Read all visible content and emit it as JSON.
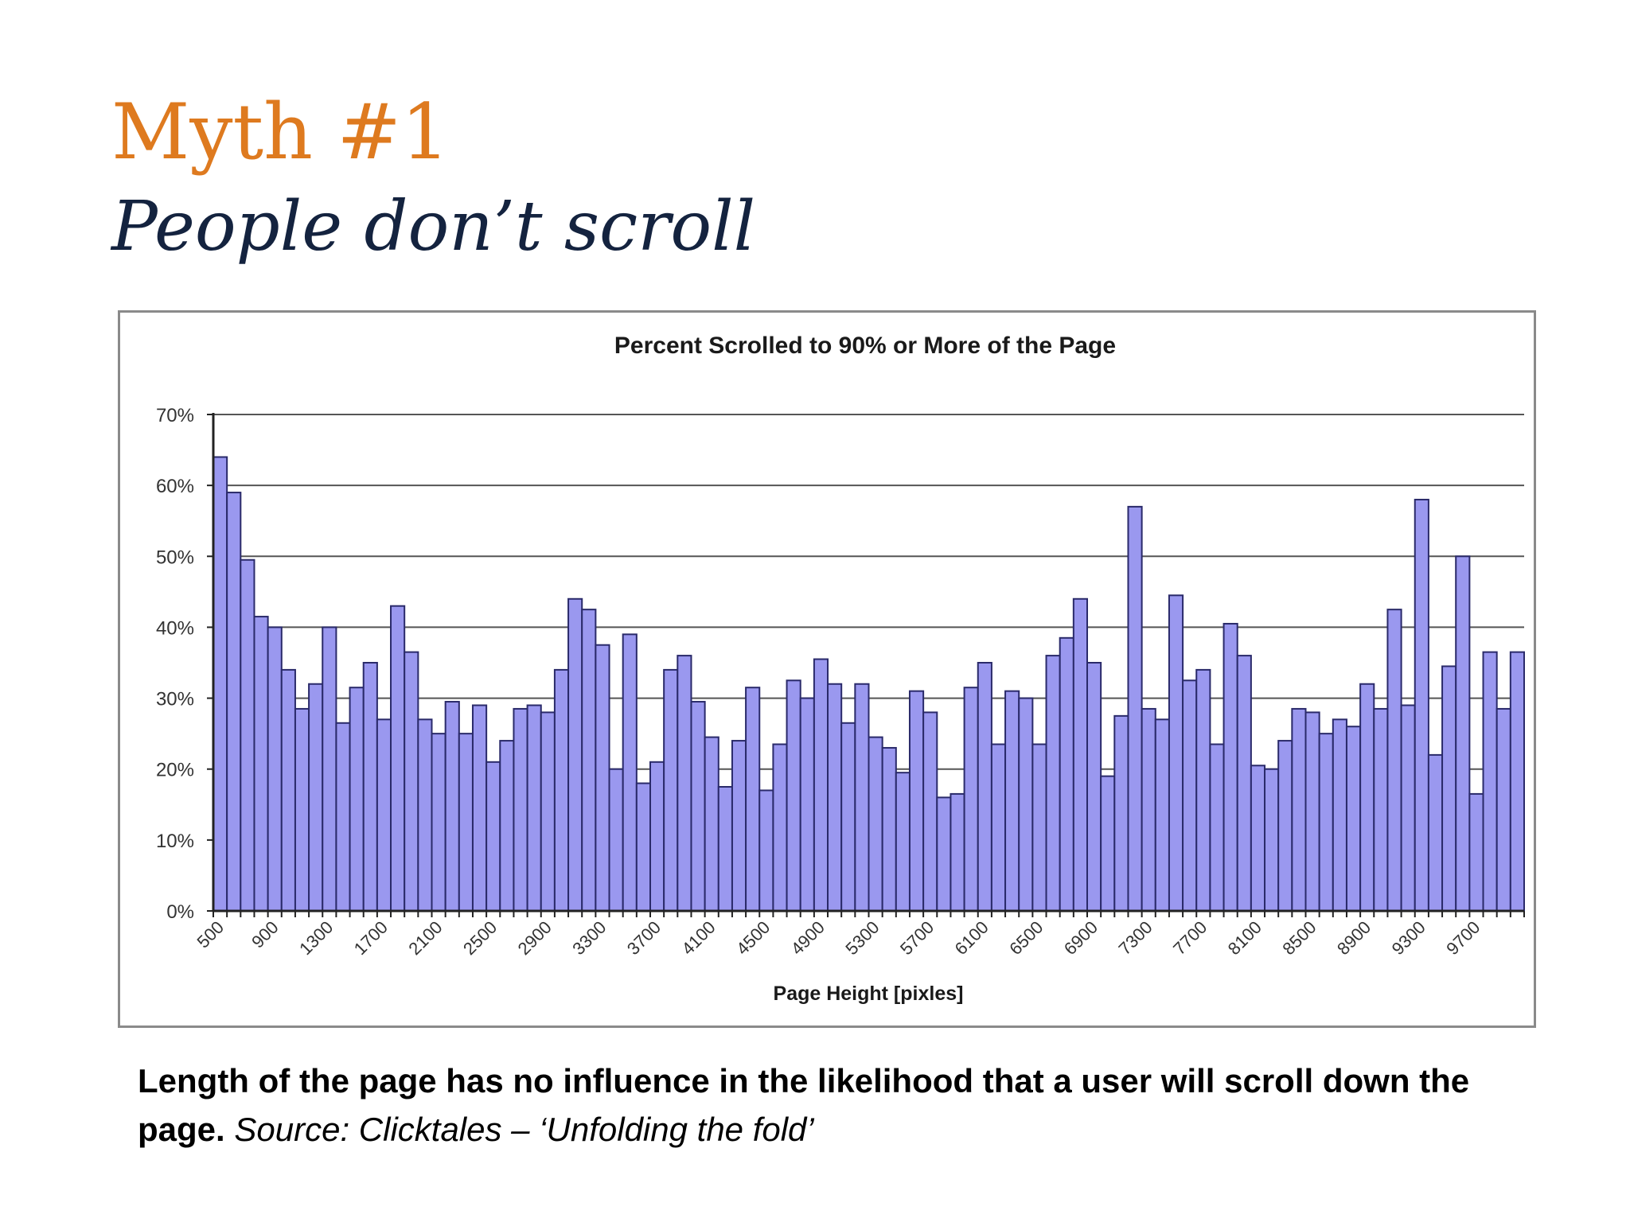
{
  "slide": {
    "title": "Myth #1",
    "subtitle": "People don’t scroll",
    "caption_bold": "Length of the page has no influence in the likelihood that a user will scroll down the page.",
    "caption_source": "Source: Clicktales – ‘Unfolding the fold’"
  },
  "colors": {
    "title": "#de7a1f",
    "subtitle": "#14233f",
    "bar_fill": "#9a98ef",
    "bar_stroke": "#2a2a6a",
    "grid": "#555555"
  },
  "chart_data": {
    "type": "bar",
    "title": "Percent Scrolled to 90% or More of the Page",
    "xlabel": "Page Height [pixles]",
    "ylabel": "",
    "ylim": [
      0,
      0.7
    ],
    "y_ticks": [
      0,
      0.1,
      0.2,
      0.3,
      0.4,
      0.5,
      0.6,
      0.7
    ],
    "y_tick_labels": [
      "0%",
      "10%",
      "20%",
      "30%",
      "40%",
      "50%",
      "60%",
      "70%"
    ],
    "grid": true,
    "x_tick_labels": [
      "500",
      "900",
      "1300",
      "1700",
      "2100",
      "2500",
      "2900",
      "3300",
      "3700",
      "4100",
      "4500",
      "4900",
      "5300",
      "5700",
      "6100",
      "6500",
      "6900",
      "7300",
      "7700",
      "8100",
      "8500",
      "8900",
      "9300",
      "9700"
    ],
    "x_tick_every": 4,
    "x_tick_start": 0,
    "values": [
      0.64,
      0.59,
      0.495,
      0.415,
      0.4,
      0.34,
      0.285,
      0.32,
      0.4,
      0.265,
      0.315,
      0.35,
      0.27,
      0.43,
      0.365,
      0.27,
      0.25,
      0.295,
      0.25,
      0.29,
      0.21,
      0.24,
      0.285,
      0.29,
      0.28,
      0.34,
      0.44,
      0.425,
      0.375,
      0.2,
      0.39,
      0.18,
      0.21,
      0.34,
      0.36,
      0.295,
      0.245,
      0.175,
      0.24,
      0.315,
      0.17,
      0.235,
      0.325,
      0.3,
      0.355,
      0.32,
      0.265,
      0.32,
      0.245,
      0.23,
      0.195,
      0.31,
      0.28,
      0.16,
      0.165,
      0.315,
      0.35,
      0.235,
      0.31,
      0.3,
      0.235,
      0.36,
      0.385,
      0.44,
      0.35,
      0.19,
      0.275,
      0.57,
      0.285,
      0.27,
      0.445,
      0.325,
      0.34,
      0.235,
      0.405,
      0.36,
      0.205,
      0.2,
      0.24,
      0.285,
      0.28,
      0.25,
      0.27,
      0.26,
      0.32,
      0.285,
      0.425,
      0.29,
      0.58,
      0.22,
      0.345,
      0.5,
      0.165,
      0.365,
      0.285,
      0.365
    ]
  }
}
